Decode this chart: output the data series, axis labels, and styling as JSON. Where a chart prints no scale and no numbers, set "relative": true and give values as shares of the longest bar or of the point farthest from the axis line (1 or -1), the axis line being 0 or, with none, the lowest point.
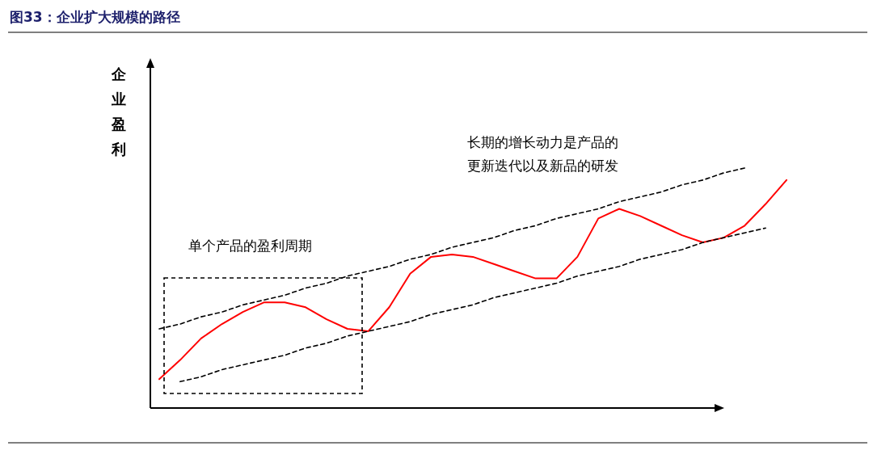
{
  "chart_data": {
    "type": "line",
    "title": "图33：企业扩大规模的路径",
    "ylabel": "企业盈利",
    "relative": true,
    "categories": [
      null,
      null,
      null,
      null,
      null,
      null,
      null,
      null,
      null,
      null,
      null,
      null,
      null,
      null,
      null,
      null,
      null,
      null,
      null,
      null,
      null,
      null,
      null,
      null,
      null,
      null,
      null,
      null,
      null,
      null,
      null
    ],
    "series": [
      {
        "color": "#ff0000",
        "line_style": "solid",
        "values": [
          0.12,
          0.2,
          0.29,
          0.35,
          0.4,
          0.44,
          0.44,
          0.42,
          0.37,
          0.33,
          0.32,
          0.42,
          0.56,
          0.63,
          0.64,
          0.63,
          0.6,
          0.57,
          0.54,
          0.54,
          0.63,
          0.79,
          0.83,
          0.8,
          0.76,
          0.72,
          0.69,
          0.71,
          0.76,
          0.85,
          0.95
        ]
      },
      {
        "color": "#000000",
        "line_style": "dashed",
        "values": [
          0.33,
          0.35,
          0.38,
          0.4,
          0.43,
          0.45,
          0.47,
          0.5,
          0.52,
          0.55,
          0.57,
          0.59,
          0.62,
          0.64,
          0.67,
          0.69,
          0.71,
          0.74,
          0.76,
          0.79,
          0.81,
          0.83,
          0.86,
          0.88,
          0.9,
          0.93,
          0.95,
          0.98,
          1.0,
          null,
          null
        ]
      },
      {
        "color": "#000000",
        "line_style": "dashed",
        "values": [
          null,
          0.11,
          0.13,
          0.16,
          0.18,
          0.2,
          0.22,
          0.25,
          0.27,
          0.3,
          0.32,
          0.34,
          0.36,
          0.39,
          0.41,
          0.43,
          0.46,
          0.48,
          0.5,
          0.52,
          0.55,
          0.57,
          0.59,
          0.62,
          0.64,
          0.66,
          0.69,
          0.71,
          0.73,
          0.75,
          null
        ]
      }
    ],
    "annotations": [
      "长期的增长动力是产品的",
      "更新迭代以及新品的研发",
      "单个产品的盈利周期"
    ]
  }
}
